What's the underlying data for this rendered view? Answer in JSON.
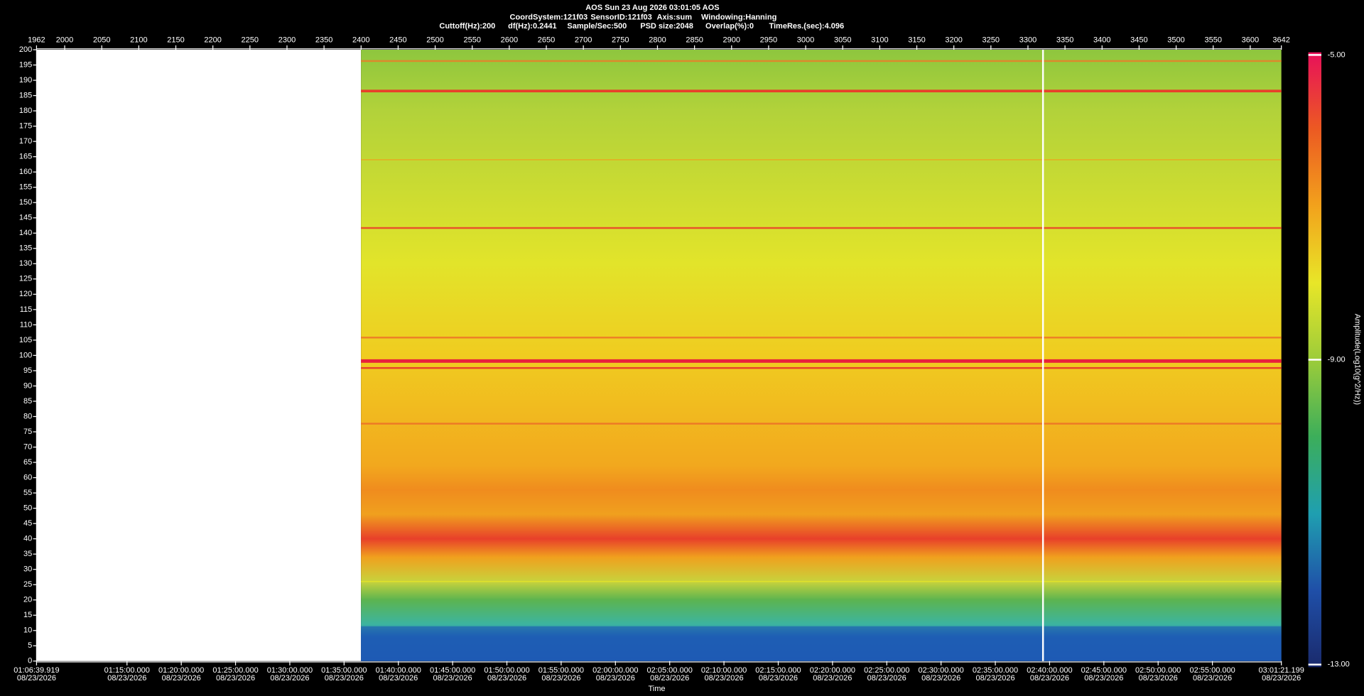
{
  "chart_data": {
    "type": "spectrogram",
    "header": {
      "line1": "AOS  Sun 23 Aug 2026 03:01:05  AOS",
      "line2": [
        "CoordSystem:121f03",
        "SensorID:121f03",
        "Axis:sum",
        "Windowing:Hanning"
      ],
      "line3": [
        "Cuttoff(Hz):200",
        "df(Hz):0.2441",
        "Sample/Sec:500",
        "PSD size:2048",
        "Overlap(%):0",
        "TimeRes.(sec):4.096"
      ]
    },
    "x_label": "Time",
    "xlim": [
      1962,
      3642
    ],
    "xticks": [
      1962,
      2000,
      2050,
      2100,
      2150,
      2200,
      2250,
      2300,
      2350,
      2400,
      2450,
      2500,
      2550,
      2600,
      2650,
      2700,
      2750,
      2800,
      2850,
      2900,
      2950,
      3000,
      3050,
      3100,
      3150,
      3200,
      3250,
      3300,
      3350,
      3400,
      3450,
      3500,
      3550,
      3600,
      3642
    ],
    "ylim": [
      0,
      200
    ],
    "yticks": [
      0,
      5,
      10,
      15,
      20,
      25,
      30,
      35,
      40,
      45,
      50,
      55,
      60,
      65,
      70,
      75,
      80,
      85,
      90,
      95,
      100,
      105,
      110,
      115,
      120,
      125,
      130,
      135,
      140,
      145,
      150,
      155,
      160,
      165,
      170,
      175,
      180,
      185,
      190,
      195,
      200
    ],
    "time_ticks": [
      {
        "time": "01:06:39.919",
        "date": "08/23/2026"
      },
      {
        "time": "01:15:00.000",
        "date": "08/23/2026"
      },
      {
        "time": "01:20:00.000",
        "date": "08/23/2026"
      },
      {
        "time": "01:25:00.000",
        "date": "08/23/2026"
      },
      {
        "time": "01:30:00.000",
        "date": "08/23/2026"
      },
      {
        "time": "01:35:00.000",
        "date": "08/23/2026"
      },
      {
        "time": "01:40:00.000",
        "date": "08/23/2026"
      },
      {
        "time": "01:45:00.000",
        "date": "08/23/2026"
      },
      {
        "time": "01:50:00.000",
        "date": "08/23/2026"
      },
      {
        "time": "01:55:00.000",
        "date": "08/23/2026"
      },
      {
        "time": "02:00:00.000",
        "date": "08/23/2026"
      },
      {
        "time": "02:05:00.000",
        "date": "08/23/2026"
      },
      {
        "time": "02:10:00.000",
        "date": "08/23/2026"
      },
      {
        "time": "02:15:00.000",
        "date": "08/23/2026"
      },
      {
        "time": "02:20:00.000",
        "date": "08/23/2026"
      },
      {
        "time": "02:25:00.000",
        "date": "08/23/2026"
      },
      {
        "time": "02:30:00.000",
        "date": "08/23/2026"
      },
      {
        "time": "02:35:00.000",
        "date": "08/23/2026"
      },
      {
        "time": "02:40:00.000",
        "date": "08/23/2026"
      },
      {
        "time": "02:45:00.000",
        "date": "08/23/2026"
      },
      {
        "time": "02:50:00.000",
        "date": "08/23/2026"
      },
      {
        "time": "02:55:00.000",
        "date": "08/23/2026"
      },
      {
        "time": "03:01:21.199",
        "date": "08/23/2026"
      }
    ],
    "colorbar": {
      "label": "Amplitude(Log10(g^2/Hz))",
      "clim": [
        -13,
        -5
      ],
      "ticks": [
        {
          "value": -5,
          "label": "-5.00"
        },
        {
          "value": -9,
          "label": "-9.00"
        },
        {
          "value": -13,
          "label": "-13.00"
        }
      ],
      "colors": [
        "#1a2a6c",
        "#1f4fa8",
        "#1f9fb0",
        "#3cae5a",
        "#9ccc3a",
        "#e8e628",
        "#f2a21c",
        "#ec5a22",
        "#e8105a"
      ]
    }
  }
}
